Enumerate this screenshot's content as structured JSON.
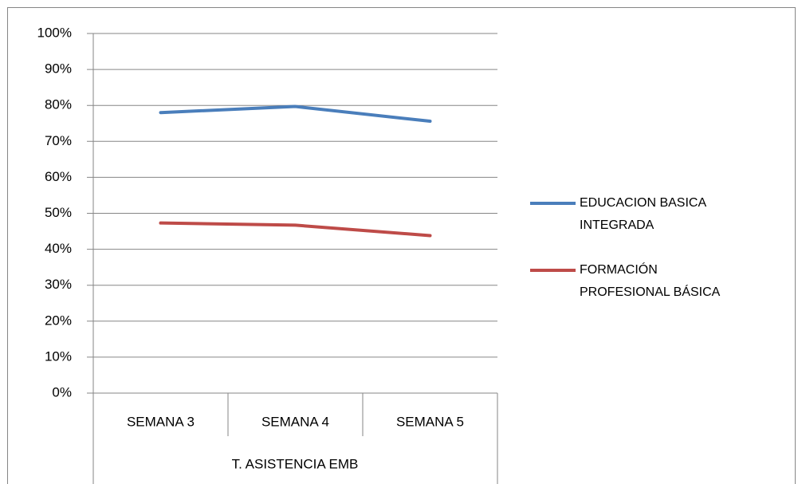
{
  "chart_data": {
    "type": "line",
    "categories": [
      "SEMANA 3",
      "SEMANA 4",
      "SEMANA 5"
    ],
    "group_label": "T. ASISTENCIA EMB",
    "series": [
      {
        "name": "EDUCACION BASICA INTEGRADA",
        "color": "#4a7ebb",
        "values": [
          78,
          79.7,
          75.6
        ]
      },
      {
        "name": "FORMACIÓN PROFESIONAL BÁSICA",
        "color": "#be4b48",
        "values": [
          47.3,
          46.7,
          43.8
        ]
      }
    ],
    "ylim": [
      0,
      100
    ],
    "yticks": [
      {
        "value": 0,
        "label": "0%"
      },
      {
        "value": 10,
        "label": "10%"
      },
      {
        "value": 20,
        "label": "20%"
      },
      {
        "value": 30,
        "label": "30%"
      },
      {
        "value": 40,
        "label": "40%"
      },
      {
        "value": 50,
        "label": "50%"
      },
      {
        "value": 60,
        "label": "60%"
      },
      {
        "value": 70,
        "label": "70%"
      },
      {
        "value": 80,
        "label": "80%"
      },
      {
        "value": 90,
        "label": "90%"
      },
      {
        "value": 100,
        "label": "100%"
      }
    ],
    "grid": true,
    "legend": "right"
  }
}
